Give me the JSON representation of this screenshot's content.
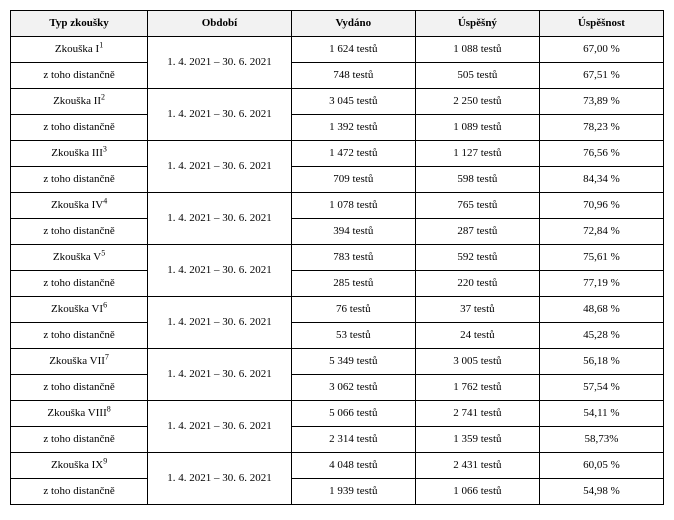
{
  "table": {
    "columns": [
      "Typ zkoušky",
      "Období",
      "Vydáno",
      "Úspěšný",
      "Úspěšnost"
    ],
    "period": "1. 4. 2021 – 30. 6. 2021",
    "distance_label": "z toho distančně",
    "header_bg": "#f2f2f2",
    "border_color": "#000000",
    "font_family": "Times New Roman",
    "groups": [
      {
        "name": "Zkouška I",
        "sup": "1",
        "main": {
          "issued": "1 624 testů",
          "passed": "1 088 testů",
          "rate": "67,00 %"
        },
        "distance": {
          "issued": "748 testů",
          "passed": "505 testů",
          "rate": "67,51 %"
        }
      },
      {
        "name": "Zkouška II",
        "sup": "2",
        "main": {
          "issued": "3 045 testů",
          "passed": "2 250 testů",
          "rate": "73,89 %"
        },
        "distance": {
          "issued": "1 392 testů",
          "passed": "1 089 testů",
          "rate": "78,23 %"
        }
      },
      {
        "name": "Zkouška III",
        "sup": "3",
        "main": {
          "issued": "1 472 testů",
          "passed": "1 127 testů",
          "rate": "76,56 %"
        },
        "distance": {
          "issued": "709 testů",
          "passed": "598 testů",
          "rate": "84,34 %"
        }
      },
      {
        "name": "Zkouška IV",
        "sup": "4",
        "main": {
          "issued": "1 078 testů",
          "passed": "765 testů",
          "rate": "70,96 %"
        },
        "distance": {
          "issued": "394 testů",
          "passed": "287 testů",
          "rate": "72,84 %"
        }
      },
      {
        "name": "Zkouška V",
        "sup": "5",
        "main": {
          "issued": "783 testů",
          "passed": "592 testů",
          "rate": "75,61 %"
        },
        "distance": {
          "issued": "285 testů",
          "passed": "220 testů",
          "rate": "77,19 %"
        }
      },
      {
        "name": "Zkouška VI",
        "sup": "6",
        "main": {
          "issued": "76 testů",
          "passed": "37 testů",
          "rate": "48,68 %"
        },
        "distance": {
          "issued": "53 testů",
          "passed": "24 testů",
          "rate": "45,28 %"
        }
      },
      {
        "name": "Zkouška VII",
        "sup": "7",
        "main": {
          "issued": "5 349 testů",
          "passed": "3 005 testů",
          "rate": "56,18 %"
        },
        "distance": {
          "issued": "3 062 testů",
          "passed": "1 762 testů",
          "rate": "57,54 %"
        }
      },
      {
        "name": "Zkouška VIII",
        "sup": "8",
        "main": {
          "issued": "5 066 testů",
          "passed": "2 741 testů",
          "rate": "54,11 %"
        },
        "distance": {
          "issued": "2 314 testů",
          "passed": "1 359 testů",
          "rate": "58,73%"
        }
      },
      {
        "name": "Zkouška IX",
        "sup": "9",
        "main": {
          "issued": "4 048 testů",
          "passed": "2 431 testů",
          "rate": "60,05 %"
        },
        "distance": {
          "issued": "1 939 testů",
          "passed": "1 066 testů",
          "rate": "54,98 %"
        }
      }
    ]
  }
}
